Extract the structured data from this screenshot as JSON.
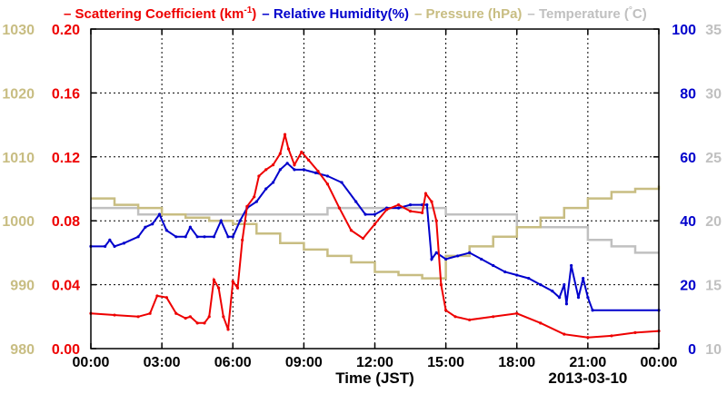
{
  "chart_data": {
    "type": "line",
    "legend": [
      {
        "label_pre": "Scattering Coefficient (km",
        "sup": "-1",
        "label_post": ")",
        "color": "#ee0000"
      },
      {
        "label_pre": "Relative Humidity(%)",
        "sup": "",
        "label_post": "",
        "color": "#0000cc"
      },
      {
        "label_pre": "Pressure (hPa)",
        "sup": "",
        "label_post": "",
        "color": "#c8bd82"
      },
      {
        "label_pre": "Temperature (",
        "sup": "°",
        "label_post": "C)",
        "color": "#c0c0c0"
      }
    ],
    "xlabel": "Time (JST)",
    "date_label": "2013-03-10",
    "x_ticks": [
      "00:00",
      "03:00",
      "06:00",
      "09:00",
      "12:00",
      "15:00",
      "18:00",
      "21:00",
      "00:00"
    ],
    "x_range_hours": [
      0,
      24
    ],
    "axes": {
      "pressure": {
        "side": "left-outer",
        "ylim": [
          980,
          1030
        ],
        "ticks": [
          "980",
          "990",
          "1000",
          "1010",
          "1020",
          "1030"
        ],
        "color": "#c8bd82"
      },
      "scattering": {
        "side": "left-inner",
        "ylim": [
          0,
          0.2
        ],
        "ticks": [
          "0.00",
          "0.04",
          "0.08",
          "0.12",
          "0.16",
          "0.20"
        ],
        "color": "#ee0000"
      },
      "humidity": {
        "side": "right-inner",
        "ylim": [
          0,
          100
        ],
        "ticks": [
          "0",
          "20",
          "40",
          "60",
          "80",
          "100"
        ],
        "color": "#0000cc"
      },
      "temperature": {
        "side": "right-outer",
        "ylim": [
          10,
          35
        ],
        "ticks": [
          "10",
          "15",
          "20",
          "25",
          "30",
          "35"
        ],
        "color": "#c0c0c0"
      }
    },
    "grid": true,
    "series": [
      {
        "name": "Scattering Coefficient",
        "axis": "scattering",
        "color": "#ee0000",
        "x": [
          0,
          1,
          2,
          2.5,
          2.8,
          3.2,
          3.6,
          4,
          4.2,
          4.5,
          4.8,
          5,
          5.2,
          5.4,
          5.6,
          5.8,
          6,
          6.2,
          6.4,
          6.6,
          6.9,
          7.1,
          7.4,
          7.7,
          8,
          8.2,
          8.35,
          8.6,
          8.9,
          9.2,
          9.6,
          10,
          10.5,
          11,
          11.5,
          12,
          12.5,
          13,
          13.5,
          14,
          14.15,
          14.4,
          14.6,
          14.8,
          15,
          15.4,
          16,
          17,
          18,
          19,
          20,
          21,
          22,
          23,
          24
        ],
        "values": [
          0.022,
          0.021,
          0.02,
          0.022,
          0.033,
          0.032,
          0.022,
          0.019,
          0.02,
          0.016,
          0.016,
          0.02,
          0.043,
          0.038,
          0.02,
          0.012,
          0.042,
          0.038,
          0.068,
          0.089,
          0.095,
          0.108,
          0.112,
          0.115,
          0.122,
          0.134,
          0.125,
          0.115,
          0.123,
          0.118,
          0.111,
          0.103,
          0.088,
          0.074,
          0.069,
          0.078,
          0.087,
          0.09,
          0.086,
          0.085,
          0.097,
          0.092,
          0.08,
          0.04,
          0.024,
          0.02,
          0.018,
          0.02,
          0.022,
          0.016,
          0.009,
          0.007,
          0.008,
          0.01,
          0.011
        ]
      },
      {
        "name": "Relative Humidity",
        "axis": "humidity",
        "color": "#0000cc",
        "x": [
          0,
          0.6,
          0.8,
          1,
          1.4,
          2,
          2.3,
          2.6,
          2.9,
          3.2,
          3.6,
          4,
          4.2,
          4.5,
          4.8,
          5.2,
          5.5,
          5.8,
          6,
          6.3,
          6.6,
          7,
          7.4,
          7.7,
          8,
          8.3,
          8.6,
          9,
          9.5,
          10,
          10.6,
          11.2,
          11.6,
          12,
          12.5,
          13,
          13.5,
          14,
          14.2,
          14.4,
          14.6,
          15,
          15.5,
          16,
          16.5,
          17,
          17.5,
          18,
          18.5,
          19,
          19.5,
          19.8,
          20,
          20.1,
          20.3,
          20.6,
          20.8,
          21,
          21.2,
          24
        ],
        "values": [
          32,
          32,
          34,
          32,
          33,
          35,
          38,
          39,
          42,
          37,
          35,
          35,
          38,
          35,
          35,
          35,
          40,
          35,
          35,
          40,
          44,
          46,
          50,
          52,
          56,
          58,
          56,
          56,
          55,
          54,
          52,
          46,
          42,
          42,
          44,
          44,
          45,
          45,
          45,
          28,
          30,
          28,
          29,
          30,
          28,
          26,
          24,
          23,
          22,
          20,
          18,
          16,
          20,
          14,
          26,
          16,
          22,
          16,
          12,
          12
        ]
      },
      {
        "name": "Pressure",
        "axis": "pressure",
        "color": "#c8bd82",
        "x": [
          0,
          1,
          2,
          3,
          4,
          5,
          6,
          7,
          8,
          9,
          10,
          11,
          12,
          13,
          14,
          15,
          16,
          17,
          18,
          19,
          20,
          21,
          22,
          23,
          24
        ],
        "values": [
          1003.5,
          1002.5,
          1002,
          1001,
          1000.5,
          1000,
          999.5,
          998,
          996.5,
          995.5,
          994.5,
          993.5,
          992,
          991.5,
          991,
          994.5,
          996,
          997.5,
          999,
          1000.5,
          1002,
          1003.5,
          1004.5,
          1005,
          1005.5
        ]
      },
      {
        "name": "Temperature",
        "axis": "temperature",
        "color": "#c0c0c0",
        "x": [
          0,
          1,
          2,
          3,
          4,
          5,
          6,
          7,
          8,
          9,
          10,
          11,
          12,
          13,
          14,
          15,
          16,
          17,
          18,
          19,
          20,
          21,
          22,
          23,
          24
        ],
        "values": [
          21,
          21,
          20.5,
          20.5,
          20.5,
          20.5,
          20.5,
          20.5,
          20.5,
          20.5,
          21,
          21,
          21,
          21,
          21,
          20.5,
          20.5,
          20.5,
          19.5,
          19.5,
          19.5,
          18.5,
          18,
          17.5,
          17.5
        ]
      }
    ]
  }
}
